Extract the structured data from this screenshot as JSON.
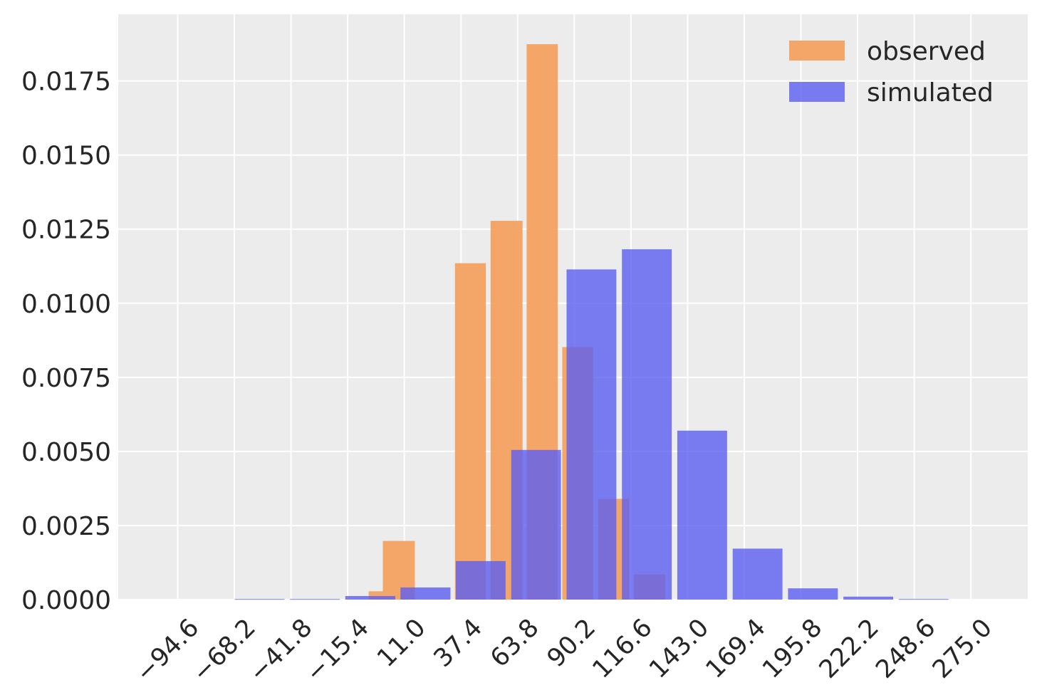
{
  "chart_data": {
    "type": "bar",
    "title": "",
    "xlabel": "",
    "ylabel": "",
    "x_ticks": [
      "−94.6",
      "−68.2",
      "−41.8",
      "−15.4",
      "11.0",
      "37.4",
      "63.8",
      "90.2",
      "116.6",
      "143.0",
      "169.4",
      "195.8",
      "222.2",
      "248.6",
      "275.0"
    ],
    "y_ticks": [
      "0.0000",
      "0.0025",
      "0.0050",
      "0.0075",
      "0.0100",
      "0.0125",
      "0.0150",
      "0.0175"
    ],
    "xlim": [
      -122.3,
      301.5
    ],
    "ylim": [
      0.0,
      0.01975
    ],
    "grid": true,
    "legend_position": "upper-right",
    "series": [
      {
        "name": "observed",
        "color": "#f4a261",
        "bars": [
          {
            "left": -5.6,
            "right": 1.0,
            "value": 0.00028
          },
          {
            "left": 1.0,
            "right": 15.9,
            "value": 0.00198
          },
          {
            "left": 34.6,
            "right": 49.0,
            "value": 0.01135
          },
          {
            "left": 51.2,
            "right": 66.1,
            "value": 0.01278
          },
          {
            "left": 68.0,
            "right": 82.5,
            "value": 0.01874
          },
          {
            "left": 84.6,
            "right": 99.0,
            "value": 0.00852
          },
          {
            "left": 101.4,
            "right": 115.8,
            "value": 0.0034
          },
          {
            "left": 118.0,
            "right": 132.5,
            "value": 0.00085
          }
        ]
      },
      {
        "name": "simulated",
        "color": "#5b5ff0",
        "bars": [
          {
            "left": -68.0,
            "right": -44.8,
            "value": 2e-05
          },
          {
            "left": -42.3,
            "right": -19.0,
            "value": 2e-05
          },
          {
            "left": -16.5,
            "right": 6.8,
            "value": 0.00012
          },
          {
            "left": 9.2,
            "right": 32.5,
            "value": 0.00041
          },
          {
            "left": 35.0,
            "right": 58.2,
            "value": 0.0013
          },
          {
            "left": 60.8,
            "right": 84.0,
            "value": 0.00505
          },
          {
            "left": 86.6,
            "right": 109.8,
            "value": 0.01114
          },
          {
            "left": 112.4,
            "right": 135.6,
            "value": 0.01182
          },
          {
            "left": 138.2,
            "right": 161.4,
            "value": 0.0057
          },
          {
            "left": 164.0,
            "right": 187.2,
            "value": 0.00172
          },
          {
            "left": 189.8,
            "right": 213.0,
            "value": 0.00038
          },
          {
            "left": 215.6,
            "right": 238.8,
            "value": 0.0001
          },
          {
            "left": 241.4,
            "right": 264.6,
            "value": 2e-05
          }
        ]
      }
    ]
  },
  "legend": {
    "observed_label": "observed",
    "simulated_label": "simulated"
  }
}
